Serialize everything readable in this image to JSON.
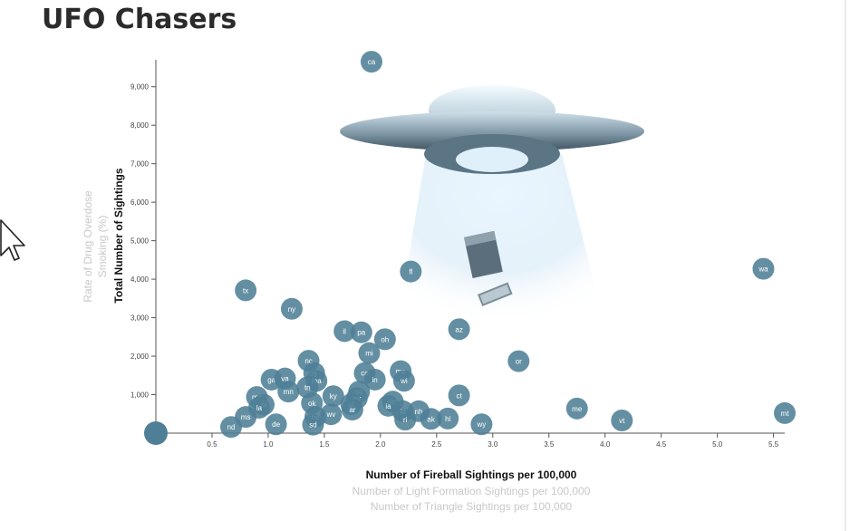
{
  "page": {
    "title": "UFO Chasers"
  },
  "axes": {
    "x_labels": [
      {
        "text": "Number of Fireball Sightings per 100,000",
        "active": true
      },
      {
        "text": "Number of Light Formation Sightings per 100,000",
        "active": false
      },
      {
        "text": "Number of Triangle Sightings per 100,000",
        "active": false
      }
    ],
    "y_labels": [
      {
        "text": "Total Number of Sightings",
        "active": true
      },
      {
        "text": "Rate of Drug Overdose",
        "active": false
      },
      {
        "text": "Smoking (%)",
        "active": false
      }
    ]
  },
  "colors": {
    "bubble": "#4f7f96",
    "bubble_text": "#ffffff",
    "axis": "#555555",
    "inactive_label": "#c8c8c8"
  },
  "chart_data": {
    "type": "scatter",
    "title": "UFO Chasers",
    "xlabel": "Number of Fireball Sightings per 100,000",
    "ylabel": "Total Number of Sightings",
    "xlim": [
      0,
      5.6
    ],
    "ylim": [
      0,
      9700
    ],
    "x_ticks": [
      "0.5",
      "1.0",
      "1.5",
      "2.0",
      "2.5",
      "3.0",
      "3.5",
      "4.0",
      "4.5",
      "5.0",
      "5.5"
    ],
    "y_ticks": [
      "1,000",
      "2,000",
      "3,000",
      "4,000",
      "5,000",
      "6,000",
      "7,000",
      "8,000",
      "9,000"
    ],
    "grid": false,
    "points": [
      {
        "label": "ca",
        "x": 1.92,
        "y": 9650
      },
      {
        "label": "fl",
        "x": 2.27,
        "y": 4200
      },
      {
        "label": "wa",
        "x": 5.41,
        "y": 4270
      },
      {
        "label": "tx",
        "x": 0.8,
        "y": 3710
      },
      {
        "label": "ny",
        "x": 1.21,
        "y": 3230
      },
      {
        "label": "il",
        "x": 1.68,
        "y": 2650
      },
      {
        "label": "pa",
        "x": 1.83,
        "y": 2620
      },
      {
        "label": "oh",
        "x": 2.04,
        "y": 2440
      },
      {
        "label": "az",
        "x": 2.7,
        "y": 2700
      },
      {
        "label": "mi",
        "x": 1.9,
        "y": 2080
      },
      {
        "label": "or",
        "x": 3.23,
        "y": 1870
      },
      {
        "label": "nc",
        "x": 1.36,
        "y": 1880
      },
      {
        "label": "nj",
        "x": 1.41,
        "y": 1560
      },
      {
        "label": "co",
        "x": 1.86,
        "y": 1560
      },
      {
        "label": "mo",
        "x": 2.18,
        "y": 1610
      },
      {
        "label": "ga",
        "x": 1.03,
        "y": 1390
      },
      {
        "label": "va",
        "x": 1.15,
        "y": 1420
      },
      {
        "label": "ma",
        "x": 1.43,
        "y": 1360
      },
      {
        "label": "in",
        "x": 1.95,
        "y": 1390
      },
      {
        "label": "wi",
        "x": 2.21,
        "y": 1360
      },
      {
        "label": "tn",
        "x": 1.35,
        "y": 1190
      },
      {
        "label": "mn",
        "x": 1.18,
        "y": 1080
      },
      {
        "label": "sc",
        "x": 1.81,
        "y": 1080
      },
      {
        "label": "md",
        "x": 0.9,
        "y": 940
      },
      {
        "label": "ky",
        "x": 1.58,
        "y": 960
      },
      {
        "label": "nv",
        "x": 1.79,
        "y": 910
      },
      {
        "label": "ct",
        "x": 2.7,
        "y": 980
      },
      {
        "label": "ok",
        "x": 1.39,
        "y": 780
      },
      {
        "label": "al",
        "x": 0.96,
        "y": 740
      },
      {
        "label": "ut",
        "x": 1.74,
        "y": 750
      },
      {
        "label": "nm",
        "x": 2.11,
        "y": 820
      },
      {
        "label": "la",
        "x": 0.92,
        "y": 660
      },
      {
        "label": "ia",
        "x": 2.07,
        "y": 710
      },
      {
        "label": "id",
        "x": 2.2,
        "y": 570
      },
      {
        "label": "nh",
        "x": 2.34,
        "y": 570
      },
      {
        "label": "ms",
        "x": 0.8,
        "y": 420
      },
      {
        "label": "ne",
        "x": 1.42,
        "y": 420
      },
      {
        "label": "wv",
        "x": 1.56,
        "y": 490
      },
      {
        "label": "ar",
        "x": 1.75,
        "y": 610
      },
      {
        "label": "me",
        "x": 3.75,
        "y": 640
      },
      {
        "label": "ri",
        "x": 2.22,
        "y": 350
      },
      {
        "label": "ak",
        "x": 2.45,
        "y": 370
      },
      {
        "label": "hi",
        "x": 2.6,
        "y": 380
      },
      {
        "label": "vt",
        "x": 4.15,
        "y": 330
      },
      {
        "label": "mt",
        "x": 5.6,
        "y": 520
      },
      {
        "label": "nd",
        "x": 0.67,
        "y": 160
      },
      {
        "label": "de",
        "x": 1.07,
        "y": 230
      },
      {
        "label": "sd",
        "x": 1.4,
        "y": 220
      },
      {
        "label": "wy",
        "x": 2.9,
        "y": 230
      }
    ]
  }
}
